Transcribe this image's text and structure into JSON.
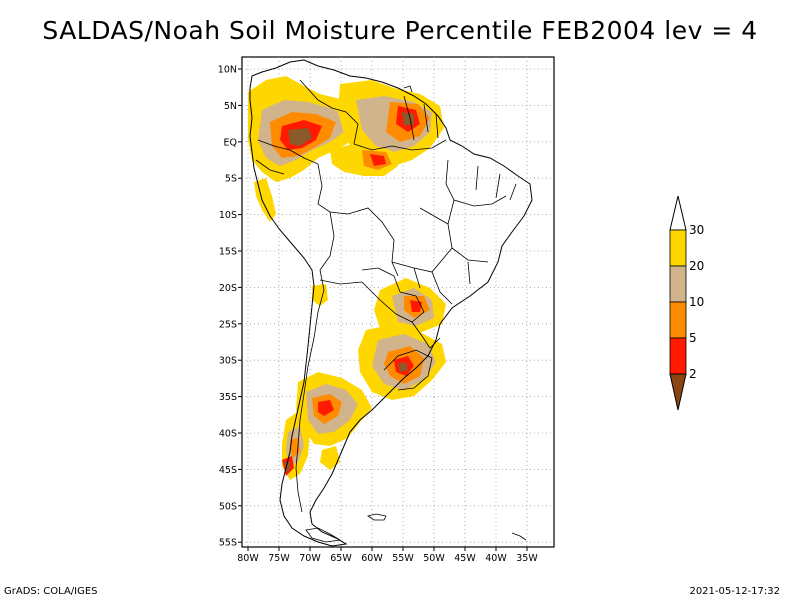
{
  "title": "SALDAS/Noah Soil Moisture Percentile FEB2004 lev = 4",
  "footer": {
    "left": "GrADS: COLA/IGES",
    "right": "2021-05-12-17:32"
  },
  "map": {
    "lat_labels": [
      "10N",
      "5N",
      "EQ",
      "5S",
      "10S",
      "15S",
      "20S",
      "25S",
      "30S",
      "35S",
      "40S",
      "45S",
      "50S",
      "55S"
    ],
    "lon_labels": [
      "80W",
      "75W",
      "70W",
      "65W",
      "60W",
      "55W",
      "50W",
      "45W",
      "40W",
      "35W"
    ],
    "lon_range": [
      -80,
      -33
    ],
    "lat_range": [
      -56,
      12
    ]
  },
  "legend": {
    "colors": [
      "#8b4513",
      "#ff1a00",
      "#ff8c00",
      "#d2b48c",
      "#ffd700",
      "#ffffff"
    ],
    "labels": [
      "2",
      "5",
      "10",
      "20",
      "30"
    ]
  }
}
